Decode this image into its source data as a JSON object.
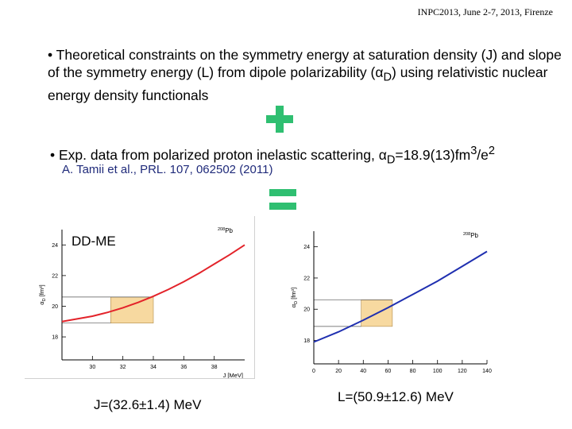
{
  "header": {
    "conference": "INPC2013, June 2-7, 2013, Firenze"
  },
  "bullets": {
    "b1": "• Theoretical constraints on the symmetry energy at saturation density (J) and slope of the symmetry energy (L) from dipole polarizability (α",
    "b1_sub": "D",
    "b1_end": ") using relativistic nuclear energy density functionals",
    "b2_start": "• Exp. data from polarized proton inelastic scattering, α",
    "b2_sub": "D",
    "b2_mid": "=18.9(13)fm",
    "b2_sup": "3",
    "b2_mid2": "/e",
    "b2_sup2": "2",
    "citation": "A. Tamii et al., PRL. 107, 062502 (2011)"
  },
  "icons": {
    "plus": "plus-icon",
    "equals": "equals-icon"
  },
  "colors": {
    "accent": "#2fbf71",
    "band": "#f7d9a0",
    "left_curve": "#e3232a",
    "right_curve": "#1f2fb0",
    "citation": "#1f2a7a"
  },
  "chart_data": [
    {
      "type": "line",
      "panel_label": "DD-ME",
      "nucleus_mass": "208",
      "nucleus_symbol": "Pb",
      "xlabel": "J [MeV]",
      "ylabel_main": "α",
      "ylabel_sub": "D",
      "ylabel_unit": " [fm³]",
      "xlim": [
        28,
        40
      ],
      "ylim": [
        16.5,
        25
      ],
      "xticks": [
        30,
        32,
        34,
        36,
        38
      ],
      "yticks": [
        18,
        20,
        22,
        24
      ],
      "series": [
        {
          "name": "DD-ME",
          "x": [
            28,
            30,
            31,
            32,
            33,
            34,
            35,
            36,
            37,
            38,
            39,
            40
          ],
          "y": [
            19.0,
            19.35,
            19.6,
            19.9,
            20.25,
            20.65,
            21.1,
            21.6,
            22.15,
            22.75,
            23.35,
            24.0
          ]
        }
      ],
      "constraint_band": {
        "x_min": 31.2,
        "x_max": 34.0,
        "y_min": 18.9,
        "y_max": 20.6
      },
      "result": "J=(32.6±1.4) MeV"
    },
    {
      "type": "line",
      "nucleus_mass": "208",
      "nucleus_symbol": "Pb",
      "xlabel": "L [MeV]",
      "ylabel_main": "α",
      "ylabel_sub": "D",
      "ylabel_unit": " [fm³]",
      "xlim": [
        0,
        140
      ],
      "ylim": [
        16.5,
        25
      ],
      "xticks": [
        0,
        20,
        40,
        60,
        80,
        100,
        120,
        140
      ],
      "yticks": [
        18,
        20,
        22,
        24
      ],
      "series": [
        {
          "name": "DD-ME",
          "x": [
            0,
            20,
            40,
            60,
            80,
            100,
            120,
            140
          ],
          "y": [
            17.9,
            18.55,
            19.3,
            20.1,
            20.95,
            21.8,
            22.75,
            23.7
          ]
        }
      ],
      "constraint_band": {
        "x_min": 38.3,
        "x_max": 63.5,
        "y_min": 18.9,
        "y_max": 20.6
      },
      "result": "L=(50.9±12.6) MeV"
    }
  ]
}
